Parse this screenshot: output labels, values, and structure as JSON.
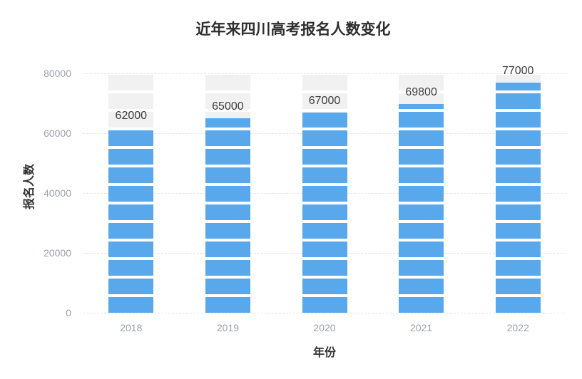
{
  "chart_data": {
    "type": "bar",
    "title": "近年来四川高考报名人数变化",
    "xlabel": "年份",
    "ylabel": "报名人数",
    "categories": [
      "2018",
      "2019",
      "2020",
      "2021",
      "2022"
    ],
    "values": [
      62000,
      65000,
      67000,
      69800,
      77000
    ],
    "value_labels": [
      "62000",
      "65000",
      "67000",
      "69800",
      "77000"
    ],
    "ylim": [
      0,
      80000
    ],
    "yticks": [
      0,
      20000,
      40000,
      60000,
      80000
    ],
    "ytick_labels": [
      "0",
      "20000",
      "40000",
      "60000",
      "80000"
    ],
    "grid": "horizontal-dashed",
    "legend": "none",
    "bar_style": "segmented-blocks-with-full-height-track",
    "colors": {
      "bar": "#58a8eb",
      "track": "#f1f1f2",
      "gridline": "#e4e6ea",
      "tick_text": "#9aa1ac",
      "value_text": "#3d3d3d",
      "title_text": "#2e2e2e",
      "axis_name_text": "#333333",
      "background": "#ffffff"
    }
  }
}
